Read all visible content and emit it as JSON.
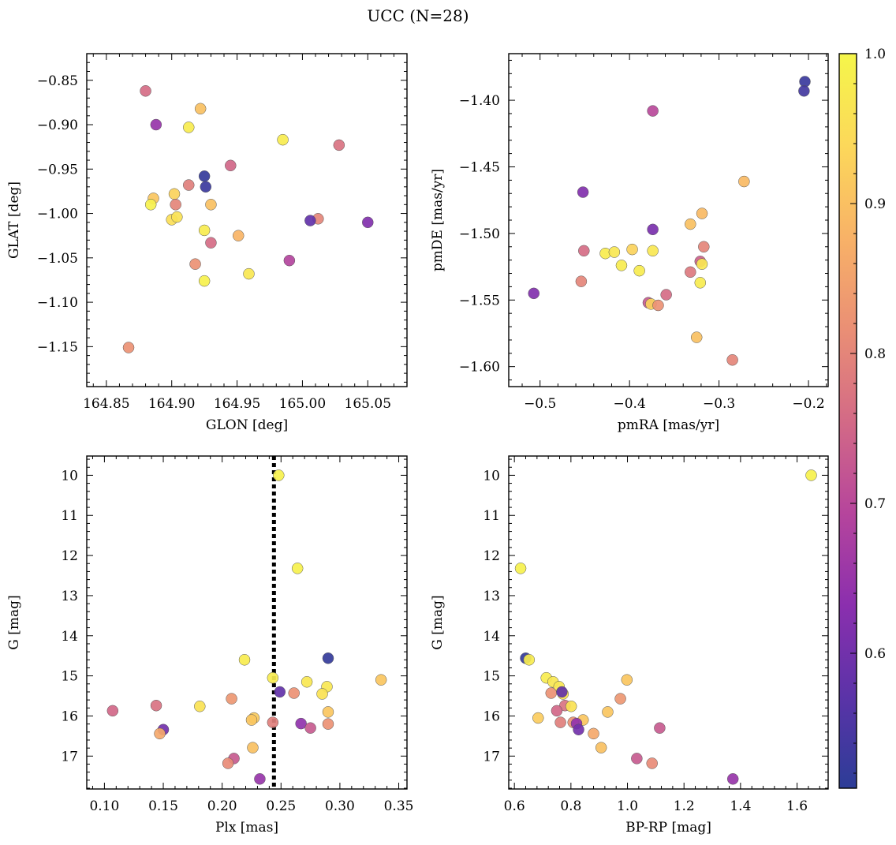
{
  "figure": {
    "title": "UCC (N=28)"
  },
  "colorbar": {
    "range": [
      0.51,
      1.0
    ],
    "ticks": [
      0.6,
      0.7,
      0.8,
      0.9,
      1.0
    ],
    "tick_labels": [
      "0.6",
      "0.7",
      "0.8",
      "0.9",
      "1.0"
    ],
    "colormap": "plasma",
    "stops": [
      "#2c3d97",
      "#5b33a8",
      "#8b2fae",
      "#b6459c",
      "#d36a86",
      "#ea8f75",
      "#f8b267",
      "#fcd85a",
      "#f5f64a"
    ]
  },
  "chart_data": [
    {
      "type": "scatter",
      "xlabel": "GLON [deg]",
      "ylabel": "GLAT [deg]",
      "xlim": [
        164.835,
        165.08
      ],
      "ylim": [
        -1.195,
        -0.82
      ],
      "xticks": [
        164.85,
        164.9,
        164.95,
        165.0,
        165.05
      ],
      "xtick_labels": [
        "164.85",
        "164.90",
        "164.95",
        "165.00",
        "165.05"
      ],
      "yticks": [
        -1.15,
        -1.1,
        -1.05,
        -1.0,
        -0.95,
        -0.9,
        -0.85
      ],
      "ytick_labels": [
        "−1.15",
        "−1.10",
        "−1.05",
        "−1.00",
        "−0.95",
        "−0.90",
        "−0.85"
      ],
      "points": [
        {
          "x": 164.88,
          "y": -0.862,
          "c": 0.76
        },
        {
          "x": 164.888,
          "y": -0.9,
          "c": 0.65
        },
        {
          "x": 164.913,
          "y": -0.903,
          "c": 0.98
        },
        {
          "x": 164.922,
          "y": -0.882,
          "c": 0.9
        },
        {
          "x": 164.985,
          "y": -0.917,
          "c": 0.98
        },
        {
          "x": 165.028,
          "y": -0.923,
          "c": 0.77
        },
        {
          "x": 164.945,
          "y": -0.946,
          "c": 0.75
        },
        {
          "x": 164.925,
          "y": -0.958,
          "c": 0.52
        },
        {
          "x": 164.926,
          "y": -0.97,
          "c": 0.53
        },
        {
          "x": 164.913,
          "y": -0.968,
          "c": 0.79
        },
        {
          "x": 164.886,
          "y": -0.983,
          "c": 0.91
        },
        {
          "x": 164.902,
          "y": -0.978,
          "c": 0.93
        },
        {
          "x": 164.884,
          "y": -0.99,
          "c": 0.99
        },
        {
          "x": 164.903,
          "y": -0.99,
          "c": 0.8
        },
        {
          "x": 164.93,
          "y": -0.99,
          "c": 0.9
        },
        {
          "x": 164.9,
          "y": -1.007,
          "c": 0.95
        },
        {
          "x": 164.904,
          "y": -1.004,
          "c": 0.96
        },
        {
          "x": 165.012,
          "y": -1.006,
          "c": 0.8
        },
        {
          "x": 165.006,
          "y": -1.008,
          "c": 0.58
        },
        {
          "x": 165.05,
          "y": -1.01,
          "c": 0.62
        },
        {
          "x": 164.925,
          "y": -1.019,
          "c": 0.98
        },
        {
          "x": 164.951,
          "y": -1.025,
          "c": 0.88
        },
        {
          "x": 164.93,
          "y": -1.033,
          "c": 0.76
        },
        {
          "x": 164.99,
          "y": -1.053,
          "c": 0.69
        },
        {
          "x": 164.918,
          "y": -1.057,
          "c": 0.82
        },
        {
          "x": 164.959,
          "y": -1.068,
          "c": 0.97
        },
        {
          "x": 164.925,
          "y": -1.076,
          "c": 0.99
        },
        {
          "x": 164.867,
          "y": -1.151,
          "c": 0.82
        }
      ]
    },
    {
      "type": "scatter",
      "xlabel": "pmRA [mas/yr]",
      "ylabel": "pmDE [mas/yr]",
      "xlim": [
        -0.535,
        -0.178
      ],
      "ylim": [
        -1.615,
        -1.365
      ],
      "xticks": [
        -0.5,
        -0.4,
        -0.3,
        -0.2
      ],
      "xtick_labels": [
        "−0.5",
        "−0.4",
        "−0.3",
        "−0.2"
      ],
      "yticks": [
        -1.6,
        -1.55,
        -1.5,
        -1.45,
        -1.4
      ],
      "ytick_labels": [
        "−1.60",
        "−1.55",
        "−1.50",
        "−1.45",
        "−1.40"
      ],
      "points": [
        {
          "x": -0.204,
          "y": -1.386,
          "c": 0.53
        },
        {
          "x": -0.205,
          "y": -1.393,
          "c": 0.54
        },
        {
          "x": -0.374,
          "y": -1.408,
          "c": 0.7
        },
        {
          "x": -0.452,
          "y": -1.469,
          "c": 0.62
        },
        {
          "x": -0.272,
          "y": -1.461,
          "c": 0.89
        },
        {
          "x": -0.319,
          "y": -1.485,
          "c": 0.89
        },
        {
          "x": -0.332,
          "y": -1.493,
          "c": 0.9
        },
        {
          "x": -0.374,
          "y": -1.497,
          "c": 0.61
        },
        {
          "x": -0.317,
          "y": -1.51,
          "c": 0.8
        },
        {
          "x": -0.451,
          "y": -1.513,
          "c": 0.76
        },
        {
          "x": -0.427,
          "y": -1.515,
          "c": 0.98
        },
        {
          "x": -0.417,
          "y": -1.514,
          "c": 0.97
        },
        {
          "x": -0.397,
          "y": -1.512,
          "c": 0.93
        },
        {
          "x": -0.374,
          "y": -1.513,
          "c": 0.97
        },
        {
          "x": -0.409,
          "y": -1.524,
          "c": 0.98
        },
        {
          "x": -0.321,
          "y": -1.521,
          "c": 0.74
        },
        {
          "x": -0.319,
          "y": -1.523,
          "c": 0.97
        },
        {
          "x": -0.389,
          "y": -1.528,
          "c": 0.98
        },
        {
          "x": -0.332,
          "y": -1.529,
          "c": 0.78
        },
        {
          "x": -0.454,
          "y": -1.536,
          "c": 0.8
        },
        {
          "x": -0.321,
          "y": -1.537,
          "c": 0.98
        },
        {
          "x": -0.507,
          "y": -1.545,
          "c": 0.62
        },
        {
          "x": -0.359,
          "y": -1.546,
          "c": 0.76
        },
        {
          "x": -0.379,
          "y": -1.552,
          "c": 0.73
        },
        {
          "x": -0.376,
          "y": -1.553,
          "c": 0.93
        },
        {
          "x": -0.368,
          "y": -1.554,
          "c": 0.82
        },
        {
          "x": -0.325,
          "y": -1.578,
          "c": 0.9
        },
        {
          "x": -0.285,
          "y": -1.595,
          "c": 0.8
        }
      ]
    },
    {
      "type": "scatter",
      "xlabel": "Plx [mas]",
      "ylabel": "G [mag]",
      "xlim": [
        0.085,
        0.357
      ],
      "ylim": [
        17.82,
        9.52
      ],
      "y_inverted": true,
      "xticks": [
        0.1,
        0.15,
        0.2,
        0.25,
        0.3,
        0.35
      ],
      "xtick_labels": [
        "0.10",
        "0.15",
        "0.20",
        "0.25",
        "0.30",
        "0.35"
      ],
      "yticks": [
        10,
        11,
        12,
        13,
        14,
        15,
        16,
        17
      ],
      "ytick_labels": [
        "10",
        "11",
        "12",
        "13",
        "14",
        "15",
        "16",
        "17"
      ],
      "vline_x": 0.244,
      "points": [
        {
          "x": 0.248,
          "y": 10.0,
          "c": 0.99
        },
        {
          "x": 0.264,
          "y": 12.32,
          "c": 0.99
        },
        {
          "x": 0.219,
          "y": 14.6,
          "c": 0.98
        },
        {
          "x": 0.29,
          "y": 14.56,
          "c": 0.52
        },
        {
          "x": 0.243,
          "y": 15.05,
          "c": 0.98
        },
        {
          "x": 0.335,
          "y": 15.1,
          "c": 0.91
        },
        {
          "x": 0.272,
          "y": 15.15,
          "c": 0.97
        },
        {
          "x": 0.289,
          "y": 15.27,
          "c": 0.97
        },
        {
          "x": 0.249,
          "y": 15.4,
          "c": 0.58
        },
        {
          "x": 0.261,
          "y": 15.43,
          "c": 0.82
        },
        {
          "x": 0.285,
          "y": 15.45,
          "c": 0.96
        },
        {
          "x": 0.208,
          "y": 15.57,
          "c": 0.83
        },
        {
          "x": 0.144,
          "y": 15.74,
          "c": 0.77
        },
        {
          "x": 0.181,
          "y": 15.76,
          "c": 0.96
        },
        {
          "x": 0.107,
          "y": 15.87,
          "c": 0.75
        },
        {
          "x": 0.29,
          "y": 15.9,
          "c": 0.91
        },
        {
          "x": 0.227,
          "y": 16.05,
          "c": 0.92
        },
        {
          "x": 0.225,
          "y": 16.1,
          "c": 0.91
        },
        {
          "x": 0.243,
          "y": 16.16,
          "c": 0.79
        },
        {
          "x": 0.267,
          "y": 16.19,
          "c": 0.64
        },
        {
          "x": 0.29,
          "y": 16.2,
          "c": 0.82
        },
        {
          "x": 0.275,
          "y": 16.3,
          "c": 0.73
        },
        {
          "x": 0.15,
          "y": 16.34,
          "c": 0.6
        },
        {
          "x": 0.147,
          "y": 16.44,
          "c": 0.86
        },
        {
          "x": 0.226,
          "y": 16.79,
          "c": 0.9
        },
        {
          "x": 0.21,
          "y": 17.06,
          "c": 0.73
        },
        {
          "x": 0.205,
          "y": 17.18,
          "c": 0.81
        },
        {
          "x": 0.232,
          "y": 17.57,
          "c": 0.65
        }
      ]
    },
    {
      "type": "scatter",
      "xlabel": "BP-RP [mag]",
      "ylabel": "G [mag]",
      "xlim": [
        0.58,
        1.71
      ],
      "ylim": [
        17.82,
        9.52
      ],
      "y_inverted": true,
      "xticks": [
        0.6,
        0.8,
        1.0,
        1.2,
        1.4,
        1.6
      ],
      "xtick_labels": [
        "0.6",
        "0.8",
        "1.0",
        "1.2",
        "1.4",
        "1.6"
      ],
      "yticks": [
        10,
        11,
        12,
        13,
        14,
        15,
        16,
        17
      ],
      "ytick_labels": [
        "10",
        "11",
        "12",
        "13",
        "14",
        "15",
        "16",
        "17"
      ],
      "points": [
        {
          "x": 1.65,
          "y": 10.0,
          "c": 0.99
        },
        {
          "x": 0.622,
          "y": 12.32,
          "c": 0.99
        },
        {
          "x": 0.64,
          "y": 14.56,
          "c": 0.52
        },
        {
          "x": 0.652,
          "y": 14.6,
          "c": 0.98
        },
        {
          "x": 0.713,
          "y": 15.05,
          "c": 0.98
        },
        {
          "x": 0.737,
          "y": 15.15,
          "c": 0.97
        },
        {
          "x": 0.758,
          "y": 15.27,
          "c": 0.97
        },
        {
          "x": 0.772,
          "y": 15.45,
          "c": 0.96
        },
        {
          "x": 0.998,
          "y": 15.1,
          "c": 0.91
        },
        {
          "x": 0.73,
          "y": 15.43,
          "c": 0.82
        },
        {
          "x": 0.768,
          "y": 15.4,
          "c": 0.58
        },
        {
          "x": 0.975,
          "y": 15.57,
          "c": 0.83
        },
        {
          "x": 0.779,
          "y": 15.74,
          "c": 0.77
        },
        {
          "x": 0.801,
          "y": 15.76,
          "c": 0.96
        },
        {
          "x": 0.75,
          "y": 15.87,
          "c": 0.75
        },
        {
          "x": 0.93,
          "y": 15.9,
          "c": 0.91
        },
        {
          "x": 0.684,
          "y": 16.05,
          "c": 0.92
        },
        {
          "x": 0.843,
          "y": 16.1,
          "c": 0.91
        },
        {
          "x": 0.763,
          "y": 16.16,
          "c": 0.79
        },
        {
          "x": 0.808,
          "y": 16.16,
          "c": 0.82
        },
        {
          "x": 0.82,
          "y": 16.19,
          "c": 0.64
        },
        {
          "x": 0.827,
          "y": 16.34,
          "c": 0.6
        },
        {
          "x": 1.114,
          "y": 16.3,
          "c": 0.73
        },
        {
          "x": 0.88,
          "y": 16.44,
          "c": 0.86
        },
        {
          "x": 0.907,
          "y": 16.79,
          "c": 0.9
        },
        {
          "x": 1.033,
          "y": 17.06,
          "c": 0.73
        },
        {
          "x": 1.087,
          "y": 17.18,
          "c": 0.81
        },
        {
          "x": 1.373,
          "y": 17.57,
          "c": 0.65
        }
      ]
    }
  ]
}
